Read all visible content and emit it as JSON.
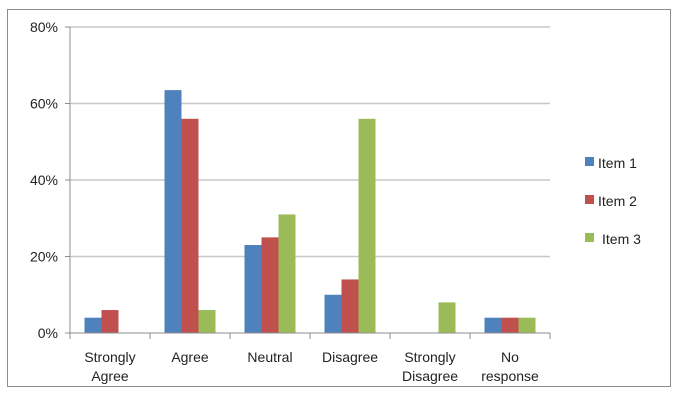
{
  "chart_data": {
    "type": "bar",
    "categories": [
      [
        "Strongly",
        "Agree"
      ],
      [
        "Agree"
      ],
      [
        "Neutral"
      ],
      [
        "Disagree"
      ],
      [
        "Strongly",
        "Disagree"
      ],
      [
        "No",
        "response"
      ]
    ],
    "series": [
      {
        "name": "Item 1",
        "color": "#4F81BD",
        "values": [
          4,
          63.5,
          23,
          10,
          0,
          4
        ]
      },
      {
        "name": "Item 2",
        "color": "#C0504D",
        "values": [
          6,
          56,
          25,
          14,
          0,
          4
        ]
      },
      {
        "name": "Item 3",
        "color": "#9BBB59",
        "values": [
          0,
          6,
          31,
          56,
          8,
          4
        ]
      }
    ],
    "ylim": [
      0,
      80
    ],
    "yticks": [
      0,
      20,
      40,
      60,
      80
    ],
    "ytick_labels": [
      "0%",
      "20%",
      "40%",
      "60%",
      "80%"
    ],
    "grid": true,
    "legend": "right"
  }
}
